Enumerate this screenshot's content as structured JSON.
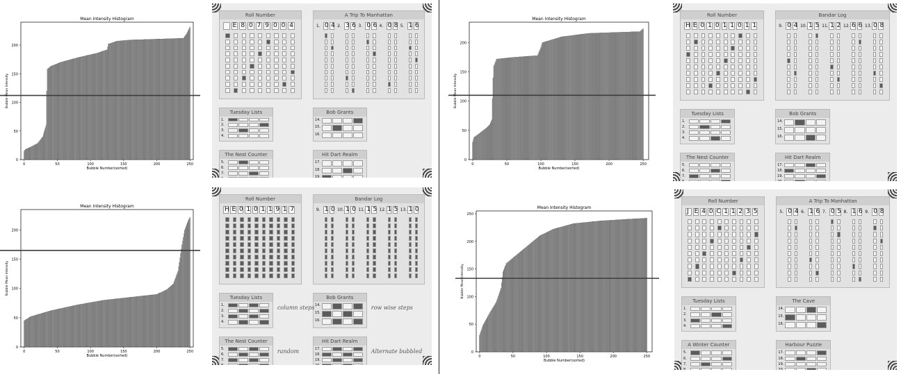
{
  "colors": {
    "bar": "#8d8d8d",
    "bar_edge": "#3a3a3a",
    "threshold": "#3c3c3c",
    "sheet": "#ececec",
    "ink": "#3a3a3a"
  },
  "chart_data": [
    {
      "type": "bar",
      "title": "Mean Intensity Histogram",
      "xlabel": "Bubble Number(sorted)",
      "ylabel": "Bubble Mean Intensity",
      "xlim": [
        -5,
        255
      ],
      "ylim": [
        0,
        240
      ],
      "xticks": [
        0,
        50,
        100,
        150,
        200,
        250
      ],
      "yticks": [
        0,
        50,
        100,
        150,
        200
      ],
      "threshold": 112,
      "profile": [
        [
          0,
          15
        ],
        [
          2,
          18
        ],
        [
          10,
          22
        ],
        [
          20,
          28
        ],
        [
          28,
          40
        ],
        [
          33,
          60
        ],
        [
          34,
          120
        ],
        [
          35,
          158
        ],
        [
          40,
          163
        ],
        [
          55,
          170
        ],
        [
          80,
          178
        ],
        [
          110,
          186
        ],
        [
          125,
          192
        ],
        [
          127,
          202
        ],
        [
          140,
          207
        ],
        [
          160,
          209
        ],
        [
          240,
          212
        ],
        [
          245,
          220
        ],
        [
          250,
          232
        ]
      ],
      "n_bars": 251
    },
    {
      "type": "bar",
      "title": "Mean Intensity Histogram",
      "xlabel": "Bubble Number(sorted)",
      "ylabel": "Bubble Mean Intensity",
      "xlim": [
        -5,
        258
      ],
      "ylim": [
        0,
        235
      ],
      "xticks": [
        0,
        50,
        100,
        150,
        200,
        250
      ],
      "yticks": [
        0,
        50,
        100,
        150,
        200
      ],
      "threshold": 110,
      "profile": [
        [
          0,
          30
        ],
        [
          2,
          38
        ],
        [
          10,
          45
        ],
        [
          20,
          54
        ],
        [
          25,
          60
        ],
        [
          28,
          68
        ],
        [
          30,
          140
        ],
        [
          31,
          160
        ],
        [
          35,
          172
        ],
        [
          60,
          175
        ],
        [
          95,
          178
        ],
        [
          100,
          192
        ],
        [
          102,
          200
        ],
        [
          130,
          210
        ],
        [
          170,
          216
        ],
        [
          245,
          219
        ],
        [
          250,
          224
        ]
      ],
      "n_bars": 251
    },
    {
      "type": "bar",
      "title": "Mean Intensity Histogram",
      "xlabel": "Bubble Number(sorted)",
      "ylabel": "Bubble Mean Intensity",
      "xlim": [
        -5,
        255
      ],
      "ylim": [
        0,
        235
      ],
      "xticks": [
        0,
        50,
        100,
        150,
        200,
        250
      ],
      "yticks": [
        0,
        50,
        100,
        150,
        200
      ],
      "threshold": 165,
      "profile": [
        [
          0,
          45
        ],
        [
          10,
          52
        ],
        [
          40,
          62
        ],
        [
          80,
          72
        ],
        [
          120,
          80
        ],
        [
          160,
          85
        ],
        [
          200,
          90
        ],
        [
          215,
          98
        ],
        [
          225,
          108
        ],
        [
          232,
          130
        ],
        [
          238,
          175
        ],
        [
          242,
          200
        ],
        [
          247,
          215
        ],
        [
          250,
          222
        ]
      ],
      "n_bars": 251
    },
    {
      "type": "bar",
      "title": "Mean Intensity Histogram",
      "xlabel": "Bubble Number(sorted)",
      "ylabel": "Bubble Mean Intensity",
      "xlim": [
        -5,
        258
      ],
      "ylim": [
        0,
        255
      ],
      "xticks": [
        0,
        50,
        100,
        150,
        200,
        250
      ],
      "yticks": [
        0,
        50,
        100,
        150,
        200,
        250
      ],
      "threshold": 133,
      "profile": [
        [
          0,
          30
        ],
        [
          5,
          48
        ],
        [
          15,
          70
        ],
        [
          25,
          90
        ],
        [
          32,
          115
        ],
        [
          35,
          145
        ],
        [
          40,
          160
        ],
        [
          50,
          170
        ],
        [
          70,
          190
        ],
        [
          90,
          210
        ],
        [
          110,
          222
        ],
        [
          140,
          232
        ],
        [
          180,
          237
        ],
        [
          220,
          240
        ],
        [
          250,
          242
        ]
      ],
      "n_bars": 251
    }
  ],
  "sheets": [
    {
      "sections": [
        {
          "title": "Roll Number",
          "boxes": [
            "",
            "E",
            "8",
            "0",
            "7",
            "9",
            "0",
            "0",
            "4"
          ],
          "cols": 9,
          "rows": 10
        },
        {
          "title": "A Trip To Manhattan",
          "groups": [
            [
              "1.",
              "0",
              "4"
            ],
            [
              "2.",
              "3",
              "6"
            ],
            [
              "3.",
              "0",
              "6"
            ],
            [
              "4.",
              "0",
              "8"
            ],
            [
              "5.",
              "1",
              "6"
            ]
          ],
          "rows": 10
        },
        {
          "title": "Tuesday Lists",
          "numbers": [
            "1.",
            "2.",
            "3.",
            "4."
          ],
          "letters": [
            "A",
            "B",
            "C",
            "D"
          ]
        },
        {
          "title": "Bob Grants",
          "numbers": [
            "14.",
            "15.",
            "16."
          ],
          "letters": [
            "A",
            "B",
            "C",
            "D"
          ]
        },
        {
          "title": "The Nest Counter",
          "numbers": [
            "5.",
            "6.",
            "7.",
            "8."
          ],
          "letters": [
            "A",
            "B",
            "C",
            "D"
          ]
        },
        {
          "title": "Hit Dart Realm",
          "numbers": [
            "17.",
            "18.",
            "19."
          ],
          "letters": [
            "A",
            "B",
            "C",
            "D"
          ]
        }
      ],
      "notes": []
    },
    {
      "sections": [
        {
          "title": "Roll Number",
          "boxes": [
            "H",
            "E",
            "0",
            "1",
            "0",
            "1",
            "1",
            "0",
            "1",
            "1"
          ],
          "cols": 10,
          "rows": 10
        },
        {
          "title": "Bandar Log",
          "groups": [
            [
              "9.",
              "0",
              "4"
            ],
            [
              "10.",
              "1",
              "5"
            ],
            [
              "11.",
              "1",
              "2"
            ],
            [
              "12.",
              "6",
              "6"
            ],
            [
              "13.",
              "0",
              "8"
            ]
          ],
          "rows": 10
        },
        {
          "title": "Tuesday Lists",
          "numbers": [
            "1.",
            "2.",
            "3.",
            "4."
          ],
          "letters": [
            "A",
            "B",
            "C",
            "D"
          ]
        },
        {
          "title": "Bob Grants",
          "numbers": [
            "14.",
            "15.",
            "16."
          ],
          "letters": [
            "A",
            "B",
            "C",
            "D"
          ]
        },
        {
          "title": "The Nest Counter",
          "numbers": [
            "5.",
            "6.",
            "7.",
            "8."
          ],
          "letters": [
            "A",
            "B",
            "C",
            "D"
          ]
        },
        {
          "title": "Hit Dart Realm",
          "numbers": [
            "17.",
            "18.",
            "19.",
            "20."
          ],
          "letters": [
            "A",
            "B",
            "C",
            "D"
          ]
        }
      ],
      "notes": []
    },
    {
      "sections": [
        {
          "title": "Roll Number",
          "boxes": [
            "H",
            "E",
            "0",
            "1",
            "0",
            "1",
            "1",
            "9",
            "1",
            "7"
          ],
          "cols": 10,
          "rows": 10
        },
        {
          "title": "Bandar Log",
          "groups": [
            [
              "9.",
              "1",
              "0"
            ],
            [
              "10.",
              "1",
              "0"
            ],
            [
              "11.",
              "1",
              "5"
            ],
            [
              "12.",
              "1",
              "5"
            ],
            [
              "13.",
              "1",
              "0"
            ]
          ],
          "rows": 10
        },
        {
          "title": "Tuesday Lists",
          "numbers": [
            "1.",
            "2.",
            "3.",
            "4."
          ],
          "letters": [
            "A",
            "B",
            "C",
            "D"
          ]
        },
        {
          "title": "Bob Grants",
          "numbers": [
            "14.",
            "15.",
            "16."
          ],
          "letters": [
            "A",
            "B",
            "C",
            "D"
          ]
        },
        {
          "title": "The Nest Counter",
          "numbers": [
            "5.",
            "6.",
            "7.",
            "8."
          ],
          "letters": [
            "A",
            "B",
            "C",
            "D"
          ]
        },
        {
          "title": "Hit Dart Realm",
          "numbers": [
            "17.",
            "18.",
            "19.",
            "20."
          ],
          "letters": [
            "A",
            "B",
            "C",
            "D"
          ]
        }
      ],
      "notes": [
        "column steps",
        "row wise steps",
        "random",
        "Alternate bubbled"
      ]
    },
    {
      "sections": [
        {
          "title": "Roll Number",
          "boxes": [
            "J",
            "E",
            "4",
            "0",
            "C",
            "1",
            "1",
            "2",
            "3",
            "5"
          ],
          "cols": 10,
          "rows": 10
        },
        {
          "title": "A Trip To Manhattan",
          "groups": [
            [
              "5.",
              "0",
              "4"
            ],
            [
              "6.",
              "1",
              "6"
            ],
            [
              "7.",
              "0",
              "5"
            ],
            [
              "8.",
              "1",
              "6"
            ],
            [
              "9.",
              "0",
              "8"
            ]
          ],
          "rows": 10
        },
        {
          "title": "Tuesday Lists",
          "numbers": [
            "1.",
            "2.",
            "3.",
            "4."
          ],
          "letters": [
            "A",
            "B",
            "C",
            "D"
          ]
        },
        {
          "title": "The Cave",
          "numbers": [
            "14.",
            "15.",
            "16."
          ],
          "letters": [
            "A",
            "B",
            "C",
            "D"
          ]
        },
        {
          "title": "A Winter Counter",
          "numbers": [
            "5.",
            "6.",
            "7.",
            "8."
          ],
          "letters": [
            "A",
            "B",
            "C",
            "D"
          ]
        },
        {
          "title": "Harbour Puzzle",
          "numbers": [
            "17.",
            "18.",
            "19.",
            "20."
          ],
          "letters": [
            "A",
            "B",
            "C",
            "D"
          ]
        }
      ],
      "notes": []
    }
  ]
}
